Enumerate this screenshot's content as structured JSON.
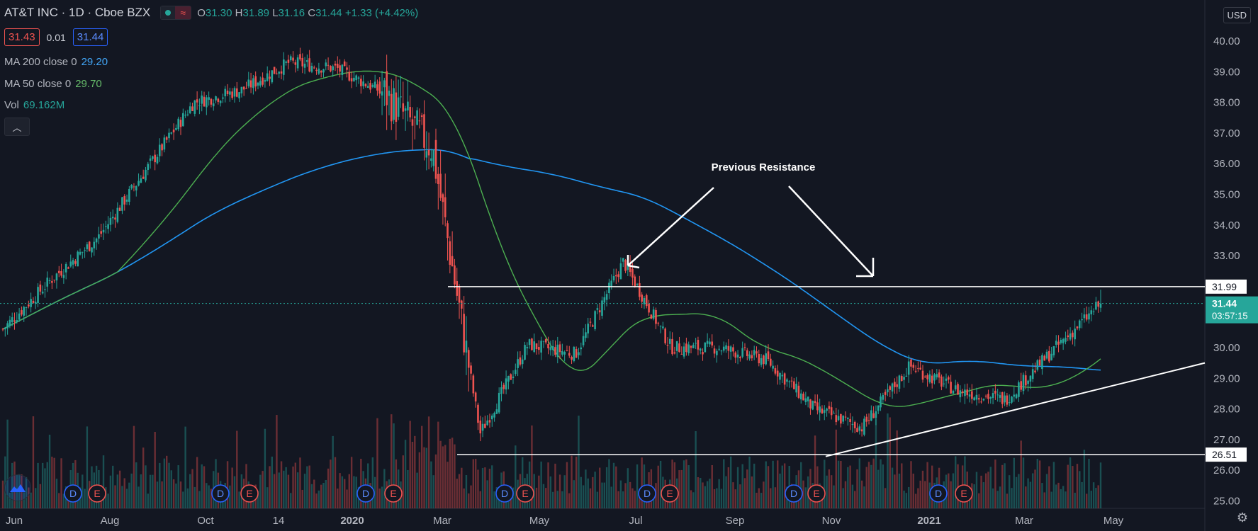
{
  "header": {
    "symbol": "AT&T INC · 1D · Cboe BZX",
    "ohlc": {
      "o_label": "O",
      "o": "31.30",
      "h_label": "H",
      "h": "31.89",
      "l_label": "L",
      "l": "31.16",
      "c_label": "C",
      "c": "31.44",
      "change": "+1.33 (+4.42%)"
    },
    "bid": "31.43",
    "spread": "0.01",
    "ask": "31.44"
  },
  "indicators": {
    "ma200_label": "MA 200 close 0",
    "ma200_value": "29.20",
    "ma50_label": "MA 50 close 0",
    "ma50_value": "29.70",
    "vol_label": "Vol",
    "vol_value": "69.162M"
  },
  "currency": "USD",
  "icons": {
    "collapse": "chevron-up-icon",
    "logo": "tradingview-logo-icon",
    "settings": "gear-icon"
  },
  "colors": {
    "up": "#26a69a",
    "down": "#ef5350",
    "ma200": "#2196f3",
    "ma50": "#4caf50",
    "bg": "#131722"
  },
  "chart_data": {
    "type": "candlestick",
    "title": "",
    "y_axis_ticks": [
      "25.00",
      "26.00",
      "27.00",
      "28.00",
      "29.00",
      "30.00",
      "31.00",
      "32.00",
      "33.00",
      "34.00",
      "35.00",
      "36.00",
      "37.00",
      "38.00",
      "39.00",
      "40.00"
    ],
    "ylim": [
      24.75,
      41.0
    ],
    "x_axis_ticks": [
      "Jun",
      "Aug",
      "Oct",
      "14",
      "2020",
      "Mar",
      "May",
      "Jul",
      "Sep",
      "Nov",
      "2021",
      "Mar",
      "May"
    ],
    "close_path": [
      [
        "Jun",
        30.6
      ],
      [
        "Jul",
        32.2
      ],
      [
        "Aug",
        33.6
      ],
      [
        "Sep",
        35.8
      ],
      [
        "Oct",
        38.0
      ],
      [
        "Nov",
        38.4
      ],
      [
        "Dec",
        39.3
      ],
      [
        "2020",
        39.1
      ],
      [
        "Feb",
        38.3
      ],
      [
        "Mar",
        36.5
      ],
      [
        "Mar 23",
        27.2
      ],
      [
        "Apr",
        30.1
      ],
      [
        "May",
        29.8
      ],
      [
        "Jun",
        32.8
      ],
      [
        "Jul",
        30.0
      ],
      [
        "Aug",
        30.0
      ],
      [
        "Sep",
        29.6
      ],
      [
        "Oct",
        28.0
      ],
      [
        "Nov",
        27.4
      ],
      [
        "Dec",
        29.4
      ],
      [
        "2021",
        28.6
      ],
      [
        "Feb",
        28.3
      ],
      [
        "Mar",
        29.9
      ],
      [
        "Apr 9",
        31.44
      ]
    ],
    "last_price": "31.44",
    "countdown": "03:57:15",
    "levels": [
      {
        "label": "31.99",
        "value": 31.99
      },
      {
        "label": "26.51",
        "value": 26.51
      }
    ],
    "annotation": "Previous Resistance",
    "events": [
      "D",
      "E",
      "D",
      "E",
      "D",
      "E",
      "D",
      "E",
      "D",
      "E",
      "D",
      "E",
      "D",
      "E"
    ]
  }
}
